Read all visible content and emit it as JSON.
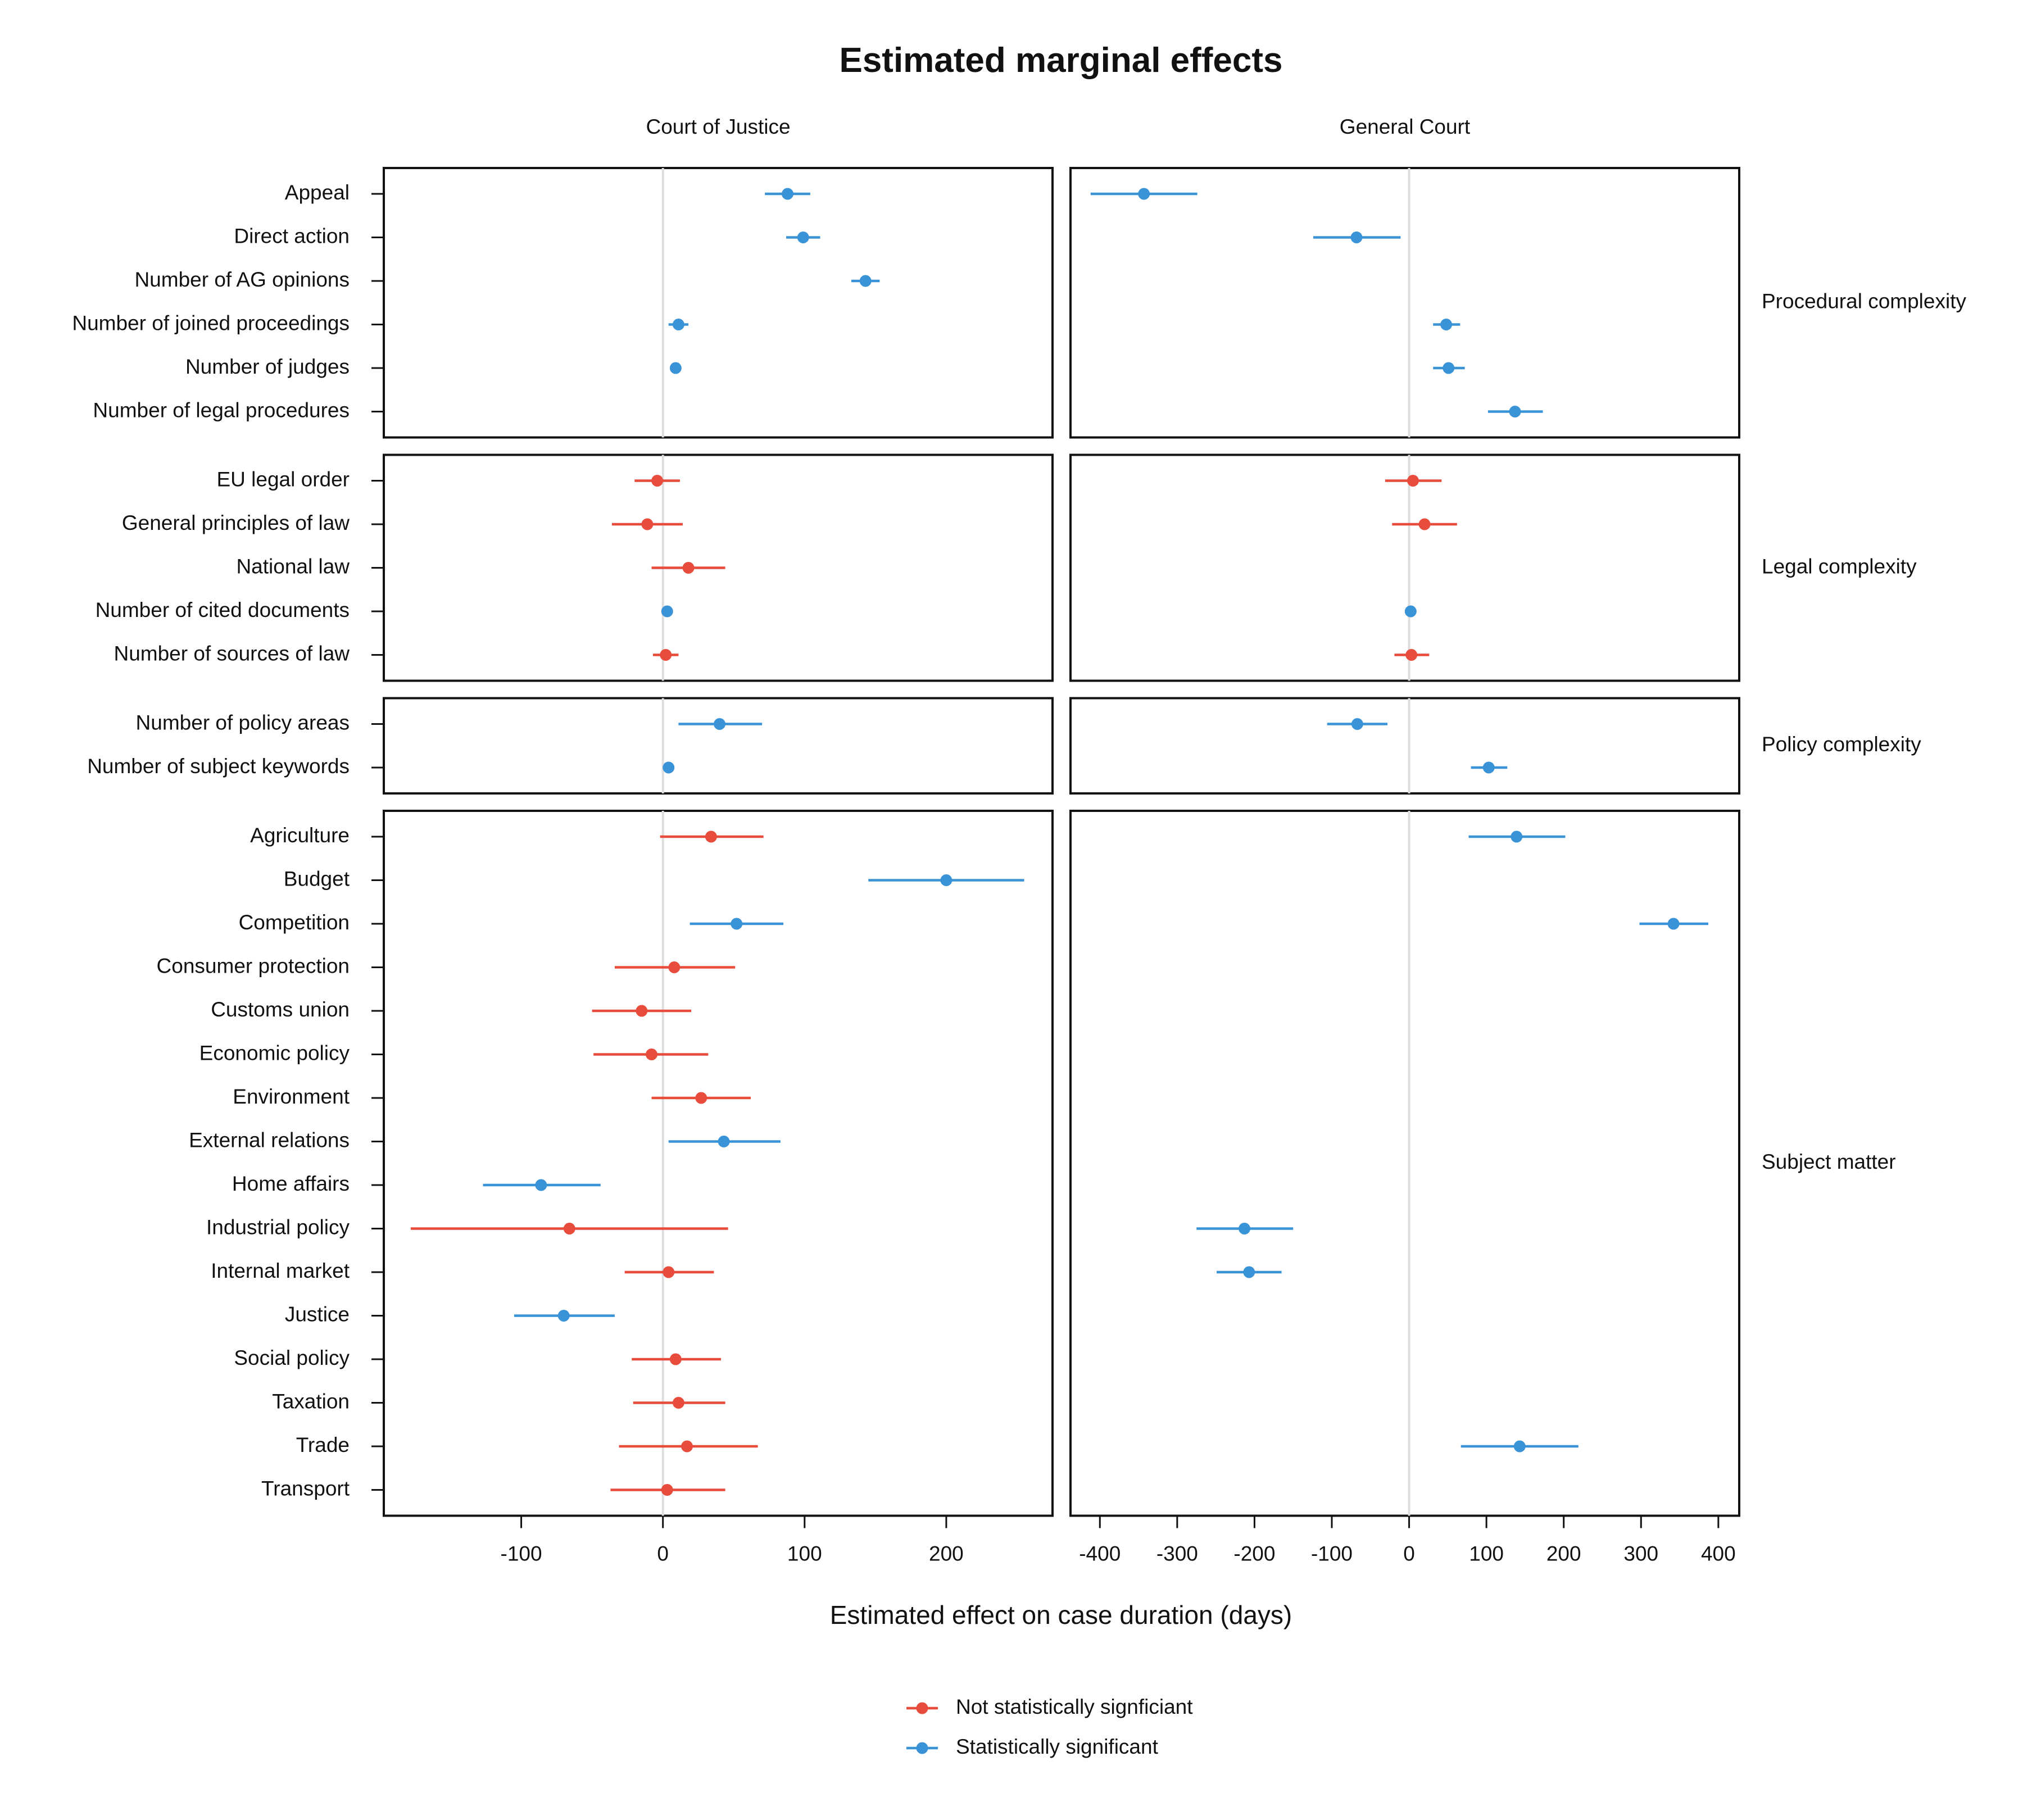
{
  "chart_data": {
    "type": "scatter",
    "subtype": "dot-and-whisker (point estimate with confidence interval)",
    "title": "Estimated marginal effects",
    "xlabel": "Estimated effect on case duration (days)",
    "facets": [
      "Court of Justice",
      "General Court"
    ],
    "colors": {
      "not_significant": "#e74c3c",
      "significant": "#3a93d6",
      "zero_line": "#dddddd",
      "frame": "#111111"
    },
    "legend": {
      "position": "bottom",
      "entries": [
        {
          "key": "not_significant",
          "label": "Not statistically signficiant"
        },
        {
          "key": "significant",
          "label": "Statistically significant"
        }
      ]
    },
    "x_axes": [
      {
        "facet": "Court of Justice",
        "xlim": [
          -197,
          275
        ],
        "ticks": [
          -100,
          0,
          100,
          200
        ],
        "tick_labels": [
          "-100",
          "0",
          "100",
          "200"
        ]
      },
      {
        "facet": "General Court",
        "xlim": [
          -438,
          427
        ],
        "ticks": [
          -400,
          -300,
          -200,
          -100,
          0,
          100,
          200,
          300,
          400
        ],
        "tick_labels": [
          "-400",
          "-300",
          "-200",
          "-100",
          "0",
          "100",
          "200",
          "300",
          "400"
        ]
      }
    ],
    "groups": [
      {
        "name": "Procedural complexity",
        "categories": [
          "Appeal",
          "Direct action",
          "Number of AG opinions",
          "Number of joined proceedings",
          "Number of judges",
          "Number of legal procedures"
        ],
        "court_of_justice": [
          {
            "est": 88,
            "lo": 72,
            "hi": 104,
            "sig": true
          },
          {
            "est": 99,
            "lo": 87,
            "hi": 111,
            "sig": true
          },
          {
            "est": 143,
            "lo": 133,
            "hi": 153,
            "sig": true
          },
          {
            "est": 11,
            "lo": 4,
            "hi": 18,
            "sig": true
          },
          {
            "est": 9,
            "lo": 9,
            "hi": 9,
            "sig": true
          },
          null
        ],
        "general_court": [
          {
            "est": -343,
            "lo": -412,
            "hi": -274,
            "sig": true
          },
          {
            "est": -68,
            "lo": -124,
            "hi": -11,
            "sig": true
          },
          null,
          {
            "est": 48,
            "lo": 31,
            "hi": 66,
            "sig": true
          },
          {
            "est": 51,
            "lo": 31,
            "hi": 72,
            "sig": true
          },
          {
            "est": 137,
            "lo": 102,
            "hi": 173,
            "sig": true
          }
        ]
      },
      {
        "name": "Legal complexity",
        "categories": [
          "EU legal order",
          "General principles of law",
          "National law",
          "Number of cited documents",
          "Number of sources of law"
        ],
        "court_of_justice": [
          {
            "est": -4,
            "lo": -20,
            "hi": 12,
            "sig": false
          },
          {
            "est": -11,
            "lo": -36,
            "hi": 14,
            "sig": false
          },
          {
            "est": 18,
            "lo": -8,
            "hi": 44,
            "sig": false
          },
          {
            "est": 3,
            "lo": 3,
            "hi": 3,
            "sig": true
          },
          {
            "est": 2,
            "lo": -7,
            "hi": 11,
            "sig": false
          }
        ],
        "general_court": [
          {
            "est": 5,
            "lo": -31,
            "hi": 42,
            "sig": false
          },
          {
            "est": 20,
            "lo": -22,
            "hi": 62,
            "sig": false
          },
          null,
          {
            "est": 2,
            "lo": 2,
            "hi": 2,
            "sig": true
          },
          {
            "est": 3,
            "lo": -19,
            "hi": 26,
            "sig": false
          }
        ]
      },
      {
        "name": "Policy complexity",
        "categories": [
          "Number of policy areas",
          "Number of subject keywords"
        ],
        "court_of_justice": [
          {
            "est": 40,
            "lo": 11,
            "hi": 70,
            "sig": true
          },
          {
            "est": 4,
            "lo": 4,
            "hi": 4,
            "sig": true
          }
        ],
        "general_court": [
          {
            "est": -67,
            "lo": -106,
            "hi": -28,
            "sig": true
          },
          {
            "est": 103,
            "lo": 80,
            "hi": 127,
            "sig": true
          }
        ]
      },
      {
        "name": "Subject matter",
        "categories": [
          "Agriculture",
          "Budget",
          "Competition",
          "Consumer protection",
          "Customs union",
          "Economic policy",
          "Environment",
          "External relations",
          "Home affairs",
          "Industrial policy",
          "Internal market",
          "Justice",
          "Social policy",
          "Taxation",
          "Trade",
          "Transport"
        ],
        "court_of_justice": [
          {
            "est": 34,
            "lo": -2,
            "hi": 71,
            "sig": false
          },
          {
            "est": 200,
            "lo": 145,
            "hi": 255,
            "sig": true
          },
          {
            "est": 52,
            "lo": 19,
            "hi": 85,
            "sig": true
          },
          {
            "est": 8,
            "lo": -34,
            "hi": 51,
            "sig": false
          },
          {
            "est": -15,
            "lo": -50,
            "hi": 20,
            "sig": false
          },
          {
            "est": -8,
            "lo": -49,
            "hi": 32,
            "sig": false
          },
          {
            "est": 27,
            "lo": -8,
            "hi": 62,
            "sig": false
          },
          {
            "est": 43,
            "lo": 4,
            "hi": 83,
            "sig": true
          },
          {
            "est": -86,
            "lo": -127,
            "hi": -44,
            "sig": true
          },
          {
            "est": -66,
            "lo": -178,
            "hi": 46,
            "sig": false
          },
          {
            "est": 4,
            "lo": -27,
            "hi": 36,
            "sig": false
          },
          {
            "est": -70,
            "lo": -105,
            "hi": -34,
            "sig": true
          },
          {
            "est": 9,
            "lo": -22,
            "hi": 41,
            "sig": false
          },
          {
            "est": 11,
            "lo": -21,
            "hi": 44,
            "sig": false
          },
          {
            "est": 17,
            "lo": -31,
            "hi": 67,
            "sig": false
          },
          {
            "est": 3,
            "lo": -37,
            "hi": 44,
            "sig": false
          }
        ],
        "general_court": [
          {
            "est": 139,
            "lo": 77,
            "hi": 202,
            "sig": true
          },
          null,
          {
            "est": 342,
            "lo": 298,
            "hi": 387,
            "sig": true
          },
          null,
          null,
          null,
          null,
          null,
          null,
          {
            "est": -213,
            "lo": -275,
            "hi": -150,
            "sig": true
          },
          {
            "est": -207,
            "lo": -249,
            "hi": -165,
            "sig": true
          },
          null,
          null,
          null,
          {
            "est": 143,
            "lo": 67,
            "hi": 219,
            "sig": true
          },
          null
        ]
      }
    ]
  }
}
